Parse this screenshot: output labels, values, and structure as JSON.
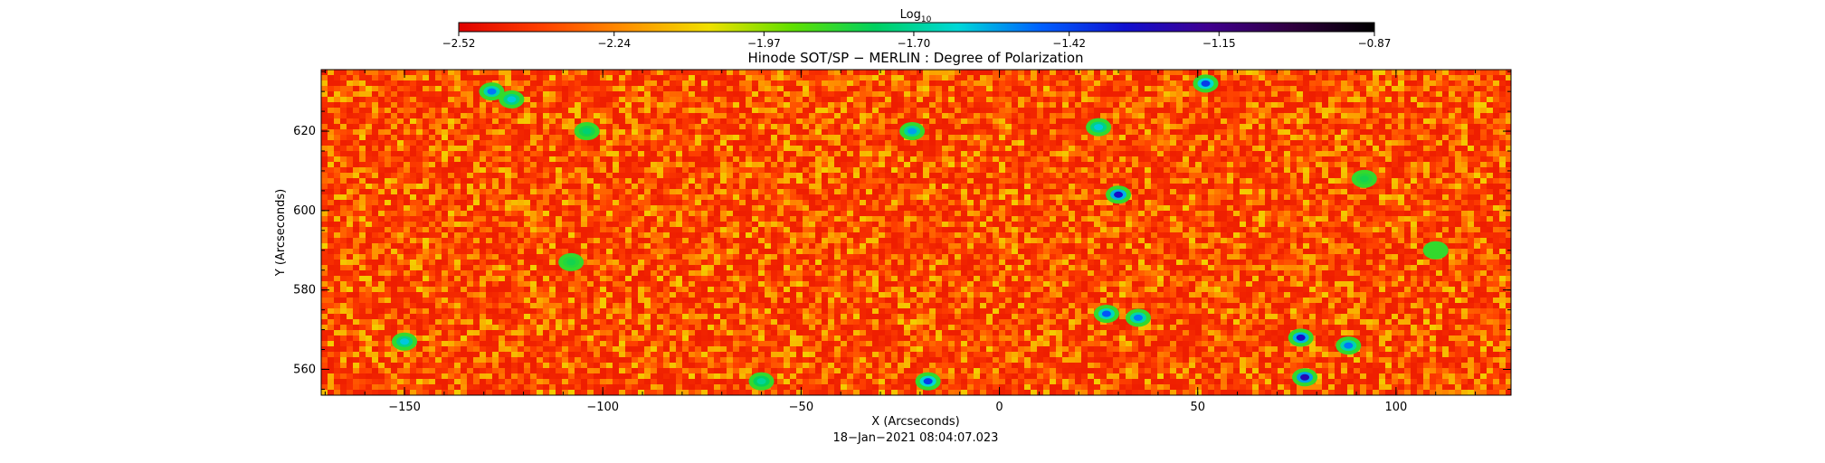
{
  "colorbar": {
    "label": "Log",
    "label_sub": "10",
    "ticks": [
      -2.52,
      -2.24,
      -1.97,
      -1.7,
      -1.42,
      -1.15,
      -0.87
    ],
    "tick_labels": [
      "−2.52",
      "−2.24",
      "−1.97",
      "−1.70",
      "−1.42",
      "−1.15",
      "−0.87"
    ],
    "range": [
      -2.52,
      -0.87
    ],
    "colormap": [
      "#e00000",
      "#ff4000",
      "#ff9000",
      "#f0e000",
      "#60e000",
      "#00d060",
      "#00d8d8",
      "#0060ff",
      "#1010d0",
      "#400090",
      "#300040",
      "#000000"
    ]
  },
  "chart_data": {
    "type": "heatmap",
    "title": "Hinode SOT/SP − MERLIN : Degree of Polarization",
    "xlabel": "X (Arcseconds)",
    "ylabel": "Y (Arcseconds)",
    "subtitle": "18−Jan−2021 08:04:07.023",
    "xlim": [
      -171,
      129
    ],
    "ylim": [
      553.5,
      635.5
    ],
    "x_ticks": [
      -150,
      -100,
      -50,
      0,
      50,
      100
    ],
    "x_tick_labels": [
      "−150",
      "−100",
      "−50",
      "0",
      "50",
      "100"
    ],
    "y_ticks": [
      560,
      580,
      600,
      620
    ],
    "y_tick_labels": [
      "560",
      "580",
      "600",
      "620"
    ],
    "x_minor_step": 10,
    "y_minor_step": 5,
    "value_unit": "log10 degree of polarization",
    "typical_range": [
      -2.45,
      -2.1
    ],
    "features": [
      {
        "x": -128,
        "y": 630,
        "value": -1.5
      },
      {
        "x": -123,
        "y": 628,
        "value": -1.6
      },
      {
        "x": 30,
        "y": 604,
        "value": -1.3
      },
      {
        "x": 25,
        "y": 621,
        "value": -1.6
      },
      {
        "x": -22,
        "y": 620,
        "value": -1.55
      },
      {
        "x": 76,
        "y": 568,
        "value": -1.3
      },
      {
        "x": 77,
        "y": 558,
        "value": -1.25
      },
      {
        "x": 27,
        "y": 574,
        "value": -1.45
      },
      {
        "x": 35,
        "y": 573,
        "value": -1.5
      },
      {
        "x": 52,
        "y": 632,
        "value": -1.4
      },
      {
        "x": -150,
        "y": 567,
        "value": -1.6
      },
      {
        "x": -18,
        "y": 557,
        "value": -1.4
      },
      {
        "x": 88,
        "y": 566,
        "value": -1.5
      },
      {
        "x": -104,
        "y": 620,
        "value": -1.75
      },
      {
        "x": -108,
        "y": 587,
        "value": -1.8
      },
      {
        "x": 92,
        "y": 608,
        "value": -1.8
      },
      {
        "x": 110,
        "y": 590,
        "value": -1.85
      },
      {
        "x": -60,
        "y": 557,
        "value": -1.7
      }
    ]
  }
}
